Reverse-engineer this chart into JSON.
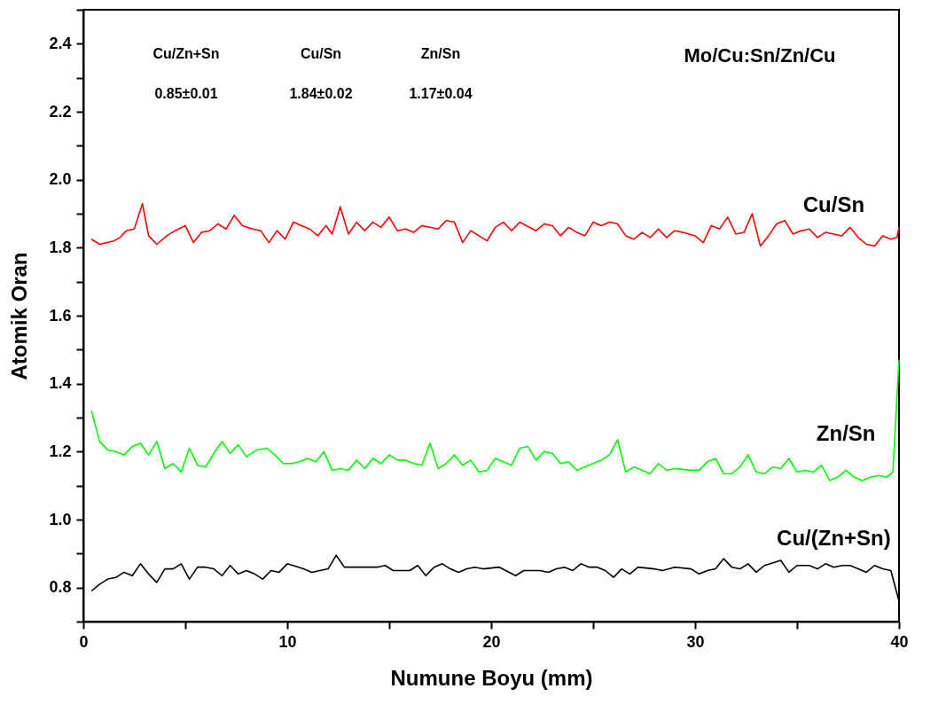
{
  "chart_data": {
    "type": "line",
    "xlabel": "Numune Boyu (mm)",
    "ylabel": "Atomik Oran",
    "xlim": [
      0,
      40
    ],
    "xticks": [
      0,
      {
        "value": 5,
        "label": null
      },
      10,
      {
        "value": 15,
        "label": null
      },
      20,
      {
        "value": 25,
        "label": null
      },
      30,
      {
        "value": 35,
        "label": null
      },
      40
    ],
    "ylim": [
      0.7,
      2.5
    ],
    "yticks": [
      {
        "value": 0.7,
        "label": null
      },
      0.8,
      {
        "value": 0.9,
        "label": null
      },
      {
        "value": 1,
        "label": "1.0"
      },
      {
        "value": 1.1,
        "label": null
      },
      1.2,
      {
        "value": 1.3,
        "label": null
      },
      1.4,
      {
        "value": 1.5,
        "label": null
      },
      1.6,
      {
        "value": 1.7,
        "label": null
      },
      1.8,
      {
        "value": 1.9,
        "label": null
      },
      {
        "value": 2,
        "label": "2.0"
      },
      {
        "value": 2.1,
        "label": null
      },
      2.2,
      {
        "value": 2.3,
        "label": null
      },
      2.4,
      {
        "value": 2.5,
        "label": null
      }
    ],
    "grid": false,
    "marker": "none",
    "line_style": "solid",
    "annotations": [
      "Mo/Cu:Sn/Zn/Cu",
      "Cu/Zn+Sn",
      "Cu/Sn",
      "Zn/Sn",
      "0.85±0.01",
      "1.84±0.02",
      "1.17±0.04"
    ],
    "series": [
      {
        "name": "Cu/Sn",
        "color": "#ff0000",
        "x": [
          0.4,
          0.8,
          1.5,
          1.8,
          2.1,
          2.5,
          2.9,
          3.2,
          3.6,
          4.1,
          4.5,
          5.0,
          5.4,
          5.8,
          6.2,
          6.6,
          7.0,
          7.4,
          7.8,
          8.3,
          8.7,
          9.1,
          9.5,
          9.9,
          10.3,
          10.7,
          11.1,
          11.5,
          11.9,
          12.2,
          12.6,
          13.0,
          13.4,
          13.8,
          14.2,
          14.6,
          15.0,
          15.4,
          15.8,
          16.2,
          16.6,
          17.4,
          17.8,
          18.2,
          18.6,
          19.0,
          19.8,
          20.2,
          20.6,
          21.0,
          21.4,
          22.2,
          22.6,
          23.0,
          23.4,
          23.8,
          24.2,
          24.6,
          25.0,
          25.4,
          25.8,
          26.2,
          26.6,
          27.0,
          27.4,
          27.8,
          28.2,
          28.6,
          29.0,
          29.4,
          30.0,
          30.4,
          30.8,
          31.2,
          31.6,
          32.0,
          32.4,
          32.8,
          33.2,
          33.6,
          34.0,
          34.4,
          34.8,
          35.2,
          35.6,
          36.0,
          36.4,
          36.8,
          37.2,
          37.6,
          38.0,
          38.4,
          38.8,
          39.2,
          39.6,
          39.9,
          40.0
        ],
        "values": [
          1.825,
          1.81,
          1.82,
          1.83,
          1.85,
          1.855,
          1.93,
          1.835,
          1.81,
          1.835,
          1.85,
          1.865,
          1.815,
          1.845,
          1.85,
          1.87,
          1.855,
          1.895,
          1.865,
          1.855,
          1.85,
          1.815,
          1.85,
          1.825,
          1.875,
          1.865,
          1.855,
          1.835,
          1.865,
          1.84,
          1.92,
          1.84,
          1.875,
          1.85,
          1.875,
          1.86,
          1.89,
          1.85,
          1.855,
          1.845,
          1.865,
          1.855,
          1.88,
          1.875,
          1.815,
          1.85,
          1.82,
          1.86,
          1.875,
          1.85,
          1.875,
          1.85,
          1.87,
          1.865,
          1.835,
          1.86,
          1.845,
          1.835,
          1.875,
          1.865,
          1.875,
          1.87,
          1.835,
          1.825,
          1.845,
          1.83,
          1.855,
          1.83,
          1.85,
          1.845,
          1.835,
          1.815,
          1.865,
          1.855,
          1.89,
          1.84,
          1.845,
          1.9,
          1.805,
          1.835,
          1.87,
          1.88,
          1.84,
          1.85,
          1.855,
          1.83,
          1.845,
          1.84,
          1.835,
          1.86,
          1.83,
          1.81,
          1.805,
          1.835,
          1.825,
          1.83,
          1.86
        ]
      },
      {
        "name": "Zn/Sn",
        "color": "#00ff00",
        "x": [
          0.4,
          0.8,
          1.2,
          1.6,
          2.0,
          2.4,
          2.8,
          3.2,
          3.6,
          4.0,
          4.4,
          4.8,
          5.2,
          5.6,
          6.0,
          6.4,
          6.8,
          7.2,
          7.6,
          8.0,
          8.5,
          9.0,
          9.4,
          9.8,
          10.2,
          10.6,
          11.0,
          11.4,
          11.8,
          12.2,
          12.6,
          13.0,
          13.4,
          13.8,
          14.2,
          14.6,
          15.0,
          15.4,
          15.8,
          16.2,
          16.6,
          17.0,
          17.4,
          17.8,
          18.2,
          18.6,
          19.0,
          19.4,
          19.8,
          20.2,
          20.6,
          21.0,
          21.4,
          21.8,
          22.2,
          22.6,
          23.0,
          23.4,
          23.8,
          24.2,
          24.6,
          25.0,
          25.4,
          25.8,
          26.2,
          26.6,
          27.0,
          27.8,
          28.2,
          28.6,
          29.0,
          29.8,
          30.2,
          30.6,
          31.0,
          31.4,
          31.8,
          32.2,
          32.6,
          33.0,
          33.4,
          33.8,
          34.2,
          34.6,
          35.0,
          35.4,
          35.8,
          36.2,
          36.6,
          37.0,
          37.4,
          37.8,
          38.2,
          38.6,
          39.0,
          39.4,
          39.7,
          40.0
        ],
        "values": [
          1.32,
          1.23,
          1.205,
          1.2,
          1.19,
          1.215,
          1.225,
          1.19,
          1.23,
          1.15,
          1.165,
          1.14,
          1.21,
          1.16,
          1.155,
          1.195,
          1.23,
          1.195,
          1.22,
          1.185,
          1.205,
          1.21,
          1.19,
          1.165,
          1.165,
          1.17,
          1.18,
          1.17,
          1.2,
          1.145,
          1.15,
          1.145,
          1.175,
          1.15,
          1.18,
          1.165,
          1.19,
          1.175,
          1.175,
          1.165,
          1.16,
          1.225,
          1.15,
          1.165,
          1.19,
          1.16,
          1.175,
          1.14,
          1.145,
          1.18,
          1.17,
          1.16,
          1.21,
          1.215,
          1.175,
          1.2,
          1.195,
          1.165,
          1.17,
          1.145,
          1.155,
          1.165,
          1.175,
          1.19,
          1.235,
          1.14,
          1.155,
          1.135,
          1.165,
          1.145,
          1.15,
          1.145,
          1.145,
          1.17,
          1.18,
          1.135,
          1.135,
          1.155,
          1.19,
          1.14,
          1.135,
          1.155,
          1.15,
          1.18,
          1.14,
          1.145,
          1.14,
          1.16,
          1.115,
          1.125,
          1.145,
          1.125,
          1.115,
          1.125,
          1.13,
          1.125,
          1.14,
          1.47
        ]
      },
      {
        "name": "Cu/(Zn+Sn)",
        "color": "#000000",
        "x": [
          0.4,
          0.8,
          1.2,
          1.6,
          2.0,
          2.4,
          2.8,
          3.2,
          3.6,
          4.0,
          4.4,
          4.8,
          5.2,
          5.6,
          6.0,
          6.4,
          6.8,
          7.2,
          7.6,
          8.0,
          8.4,
          8.8,
          9.2,
          9.6,
          10.0,
          10.8,
          11.2,
          11.6,
          12.0,
          12.4,
          12.8,
          13.2,
          14.4,
          14.8,
          15.2,
          15.6,
          16.0,
          16.4,
          16.8,
          17.2,
          17.6,
          18.0,
          18.4,
          18.8,
          19.2,
          19.6,
          20.4,
          21.2,
          21.6,
          22.0,
          22.4,
          22.8,
          23.2,
          23.6,
          24.0,
          24.4,
          24.8,
          25.2,
          25.6,
          26.0,
          26.4,
          26.8,
          27.2,
          28.0,
          28.4,
          29.0,
          29.8,
          30.2,
          30.6,
          31.0,
          31.4,
          31.8,
          32.2,
          32.6,
          33.0,
          33.4,
          34.2,
          34.6,
          35.0,
          35.6,
          36.0,
          36.4,
          36.8,
          37.2,
          37.6,
          38.0,
          38.4,
          38.8,
          39.2,
          39.6,
          40.0
        ],
        "values": [
          0.79,
          0.81,
          0.825,
          0.83,
          0.845,
          0.835,
          0.87,
          0.84,
          0.815,
          0.855,
          0.855,
          0.87,
          0.825,
          0.86,
          0.86,
          0.855,
          0.835,
          0.865,
          0.84,
          0.85,
          0.84,
          0.825,
          0.85,
          0.845,
          0.87,
          0.855,
          0.845,
          0.85,
          0.855,
          0.895,
          0.86,
          0.86,
          0.86,
          0.865,
          0.85,
          0.85,
          0.85,
          0.865,
          0.835,
          0.86,
          0.87,
          0.855,
          0.845,
          0.855,
          0.86,
          0.855,
          0.86,
          0.835,
          0.85,
          0.85,
          0.85,
          0.845,
          0.855,
          0.86,
          0.85,
          0.87,
          0.86,
          0.86,
          0.85,
          0.83,
          0.855,
          0.84,
          0.86,
          0.855,
          0.85,
          0.86,
          0.855,
          0.84,
          0.85,
          0.855,
          0.885,
          0.86,
          0.855,
          0.87,
          0.845,
          0.865,
          0.88,
          0.845,
          0.865,
          0.865,
          0.855,
          0.87,
          0.86,
          0.865,
          0.865,
          0.855,
          0.845,
          0.865,
          0.855,
          0.85,
          0.76
        ]
      }
    ]
  }
}
